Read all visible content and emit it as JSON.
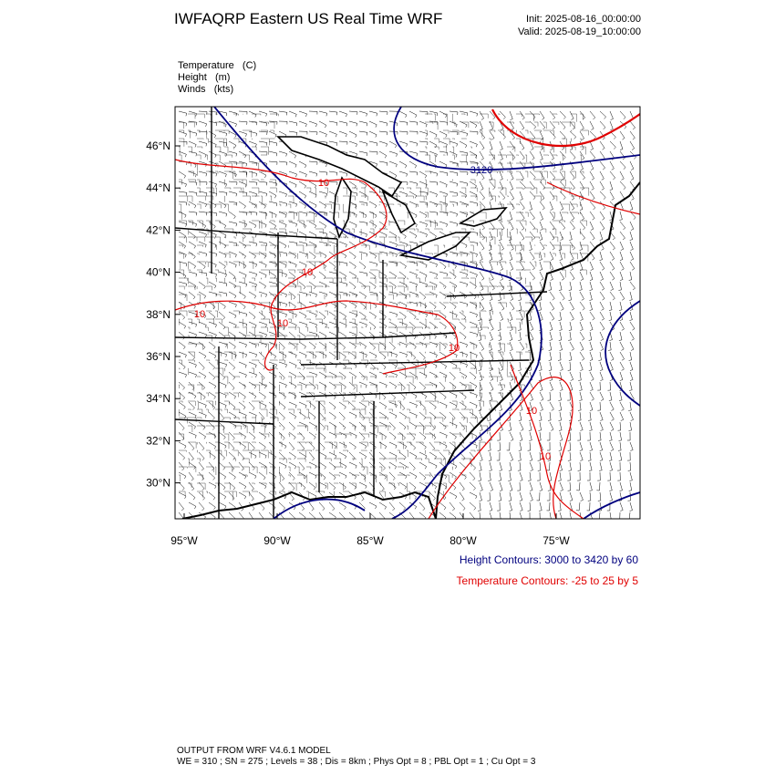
{
  "header": {
    "title": "IWFAQRP Eastern US Real Time WRF",
    "init": "Init: 2025-08-16_00:00:00",
    "valid": "Valid: 2025-08-19_10:00:00"
  },
  "fields": [
    "Temperature   (C)",
    "Height   (m)",
    "Winds   (kts)"
  ],
  "map": {
    "lat_labels": [
      "46°N",
      "44°N",
      "42°N",
      "40°N",
      "38°N",
      "36°N",
      "34°N",
      "32°N",
      "30°N"
    ],
    "lon_labels": [
      "95°W",
      "90°W",
      "85°W",
      "80°W",
      "75°W"
    ],
    "contour_labels": [
      "10",
      "10",
      "10",
      "10",
      "10",
      "10",
      "10",
      "3120"
    ]
  },
  "legend": {
    "height": "Height Contours: 3000 to 3420 by 60",
    "temperature": "Temperature Contours: -25 to 25 by 5"
  },
  "footer": {
    "model": "OUTPUT FROM WRF V4.6.1 MODEL",
    "details": "WE = 310 ; SN = 275 ; Levels = 38 ; Dis = 8km ; Phys Opt = 8 ; PBL Opt = 1 ; Cu Opt = 3"
  }
}
